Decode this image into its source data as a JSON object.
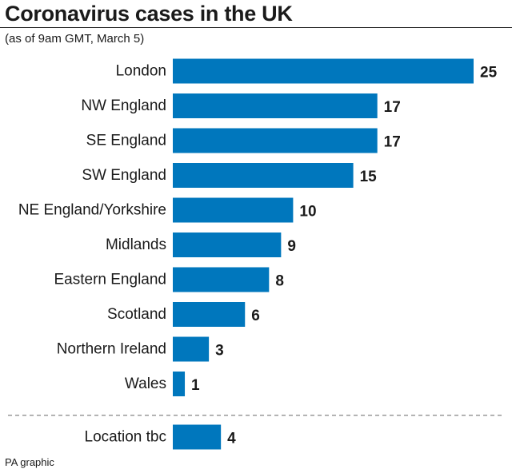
{
  "title": "Coronavirus cases in the UK",
  "subtitle": "(as of 9am GMT, March 5)",
  "footer": "PA graphic",
  "colors": {
    "bar": "#0077bd",
    "separator": "#999999"
  },
  "chart_data": {
    "type": "bar",
    "orientation": "horizontal",
    "title": "Coronavirus cases in the UK",
    "subtitle": "(as of 9am GMT, March 5)",
    "categories": [
      "London",
      "NW England",
      "SE England",
      "SW England",
      "NE England/Yorkshire",
      "Midlands",
      "Eastern England",
      "Scotland",
      "Northern Ireland",
      "Wales",
      "Location tbc"
    ],
    "values": [
      25,
      17,
      17,
      15,
      10,
      9,
      8,
      6,
      3,
      1,
      4
    ],
    "separator_before": "Location tbc",
    "data_labels": true,
    "grid": false,
    "xlim": [
      0,
      25
    ]
  }
}
